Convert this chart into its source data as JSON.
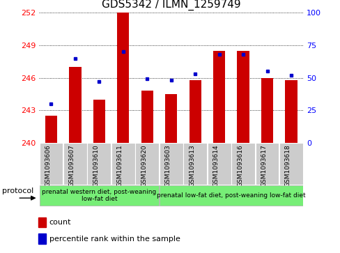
{
  "title": "GDS5342 / ILMN_1259749",
  "samples": [
    "GSM1093606",
    "GSM1093607",
    "GSM1093610",
    "GSM1093611",
    "GSM1093620",
    "GSM1093603",
    "GSM1093613",
    "GSM1093614",
    "GSM1093616",
    "GSM1093617",
    "GSM1093618"
  ],
  "count_values": [
    242.5,
    247.0,
    244.0,
    252.0,
    244.8,
    244.5,
    245.8,
    248.5,
    248.5,
    246.0,
    245.8
  ],
  "percentile_values": [
    30,
    65,
    47,
    70,
    49,
    48,
    53,
    68,
    68,
    55,
    52
  ],
  "bar_bottom": 240,
  "ylim_left": [
    240,
    252
  ],
  "ylim_right": [
    0,
    100
  ],
  "yticks_left": [
    240,
    243,
    246,
    249,
    252
  ],
  "yticks_right": [
    0,
    25,
    50,
    75,
    100
  ],
  "bar_color": "#cc0000",
  "marker_color": "#0000cc",
  "bg_color": "#ffffff",
  "cell_bg": "#cccccc",
  "group_bg": "#77ee77",
  "group1_label": "prenatal western diet, post-weaning\nlow-fat diet",
  "group2_label": "prenatal low-fat diet, post-weaning low-fat diet",
  "group1_count": 5,
  "group2_count": 6,
  "protocol_label": "protocol",
  "legend_count_label": "count",
  "legend_pct_label": "percentile rank within the sample",
  "title_fontsize": 11,
  "tick_fontsize": 8,
  "label_fontsize": 8,
  "bar_width": 0.5
}
